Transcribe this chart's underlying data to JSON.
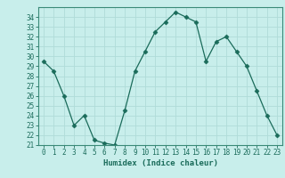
{
  "x": [
    0,
    1,
    2,
    3,
    4,
    5,
    6,
    7,
    8,
    9,
    10,
    11,
    12,
    13,
    14,
    15,
    16,
    17,
    18,
    19,
    20,
    21,
    22,
    23
  ],
  "y": [
    29.5,
    28.5,
    26.0,
    23.0,
    24.0,
    21.5,
    21.2,
    21.0,
    24.5,
    28.5,
    30.5,
    32.5,
    33.5,
    34.5,
    34.0,
    33.5,
    29.5,
    31.5,
    32.0,
    30.5,
    29.0,
    26.5,
    24.0,
    22.0
  ],
  "title": "",
  "xlabel": "Humidex (Indice chaleur)",
  "ylabel": "",
  "ylim": [
    21,
    35
  ],
  "xlim": [
    -0.5,
    23.5
  ],
  "yticks": [
    21,
    22,
    23,
    24,
    25,
    26,
    27,
    28,
    29,
    30,
    31,
    32,
    33,
    34
  ],
  "xticks": [
    0,
    1,
    2,
    3,
    4,
    5,
    6,
    7,
    8,
    9,
    10,
    11,
    12,
    13,
    14,
    15,
    16,
    17,
    18,
    19,
    20,
    21,
    22,
    23
  ],
  "line_color": "#1a6b5a",
  "marker": "D",
  "marker_size": 2.5,
  "bg_color": "#c8eeeb",
  "grid_color": "#b0dcd8",
  "border_color": "#3a8a78",
  "tick_label_fontsize": 5.5,
  "xlabel_fontsize": 6.5
}
